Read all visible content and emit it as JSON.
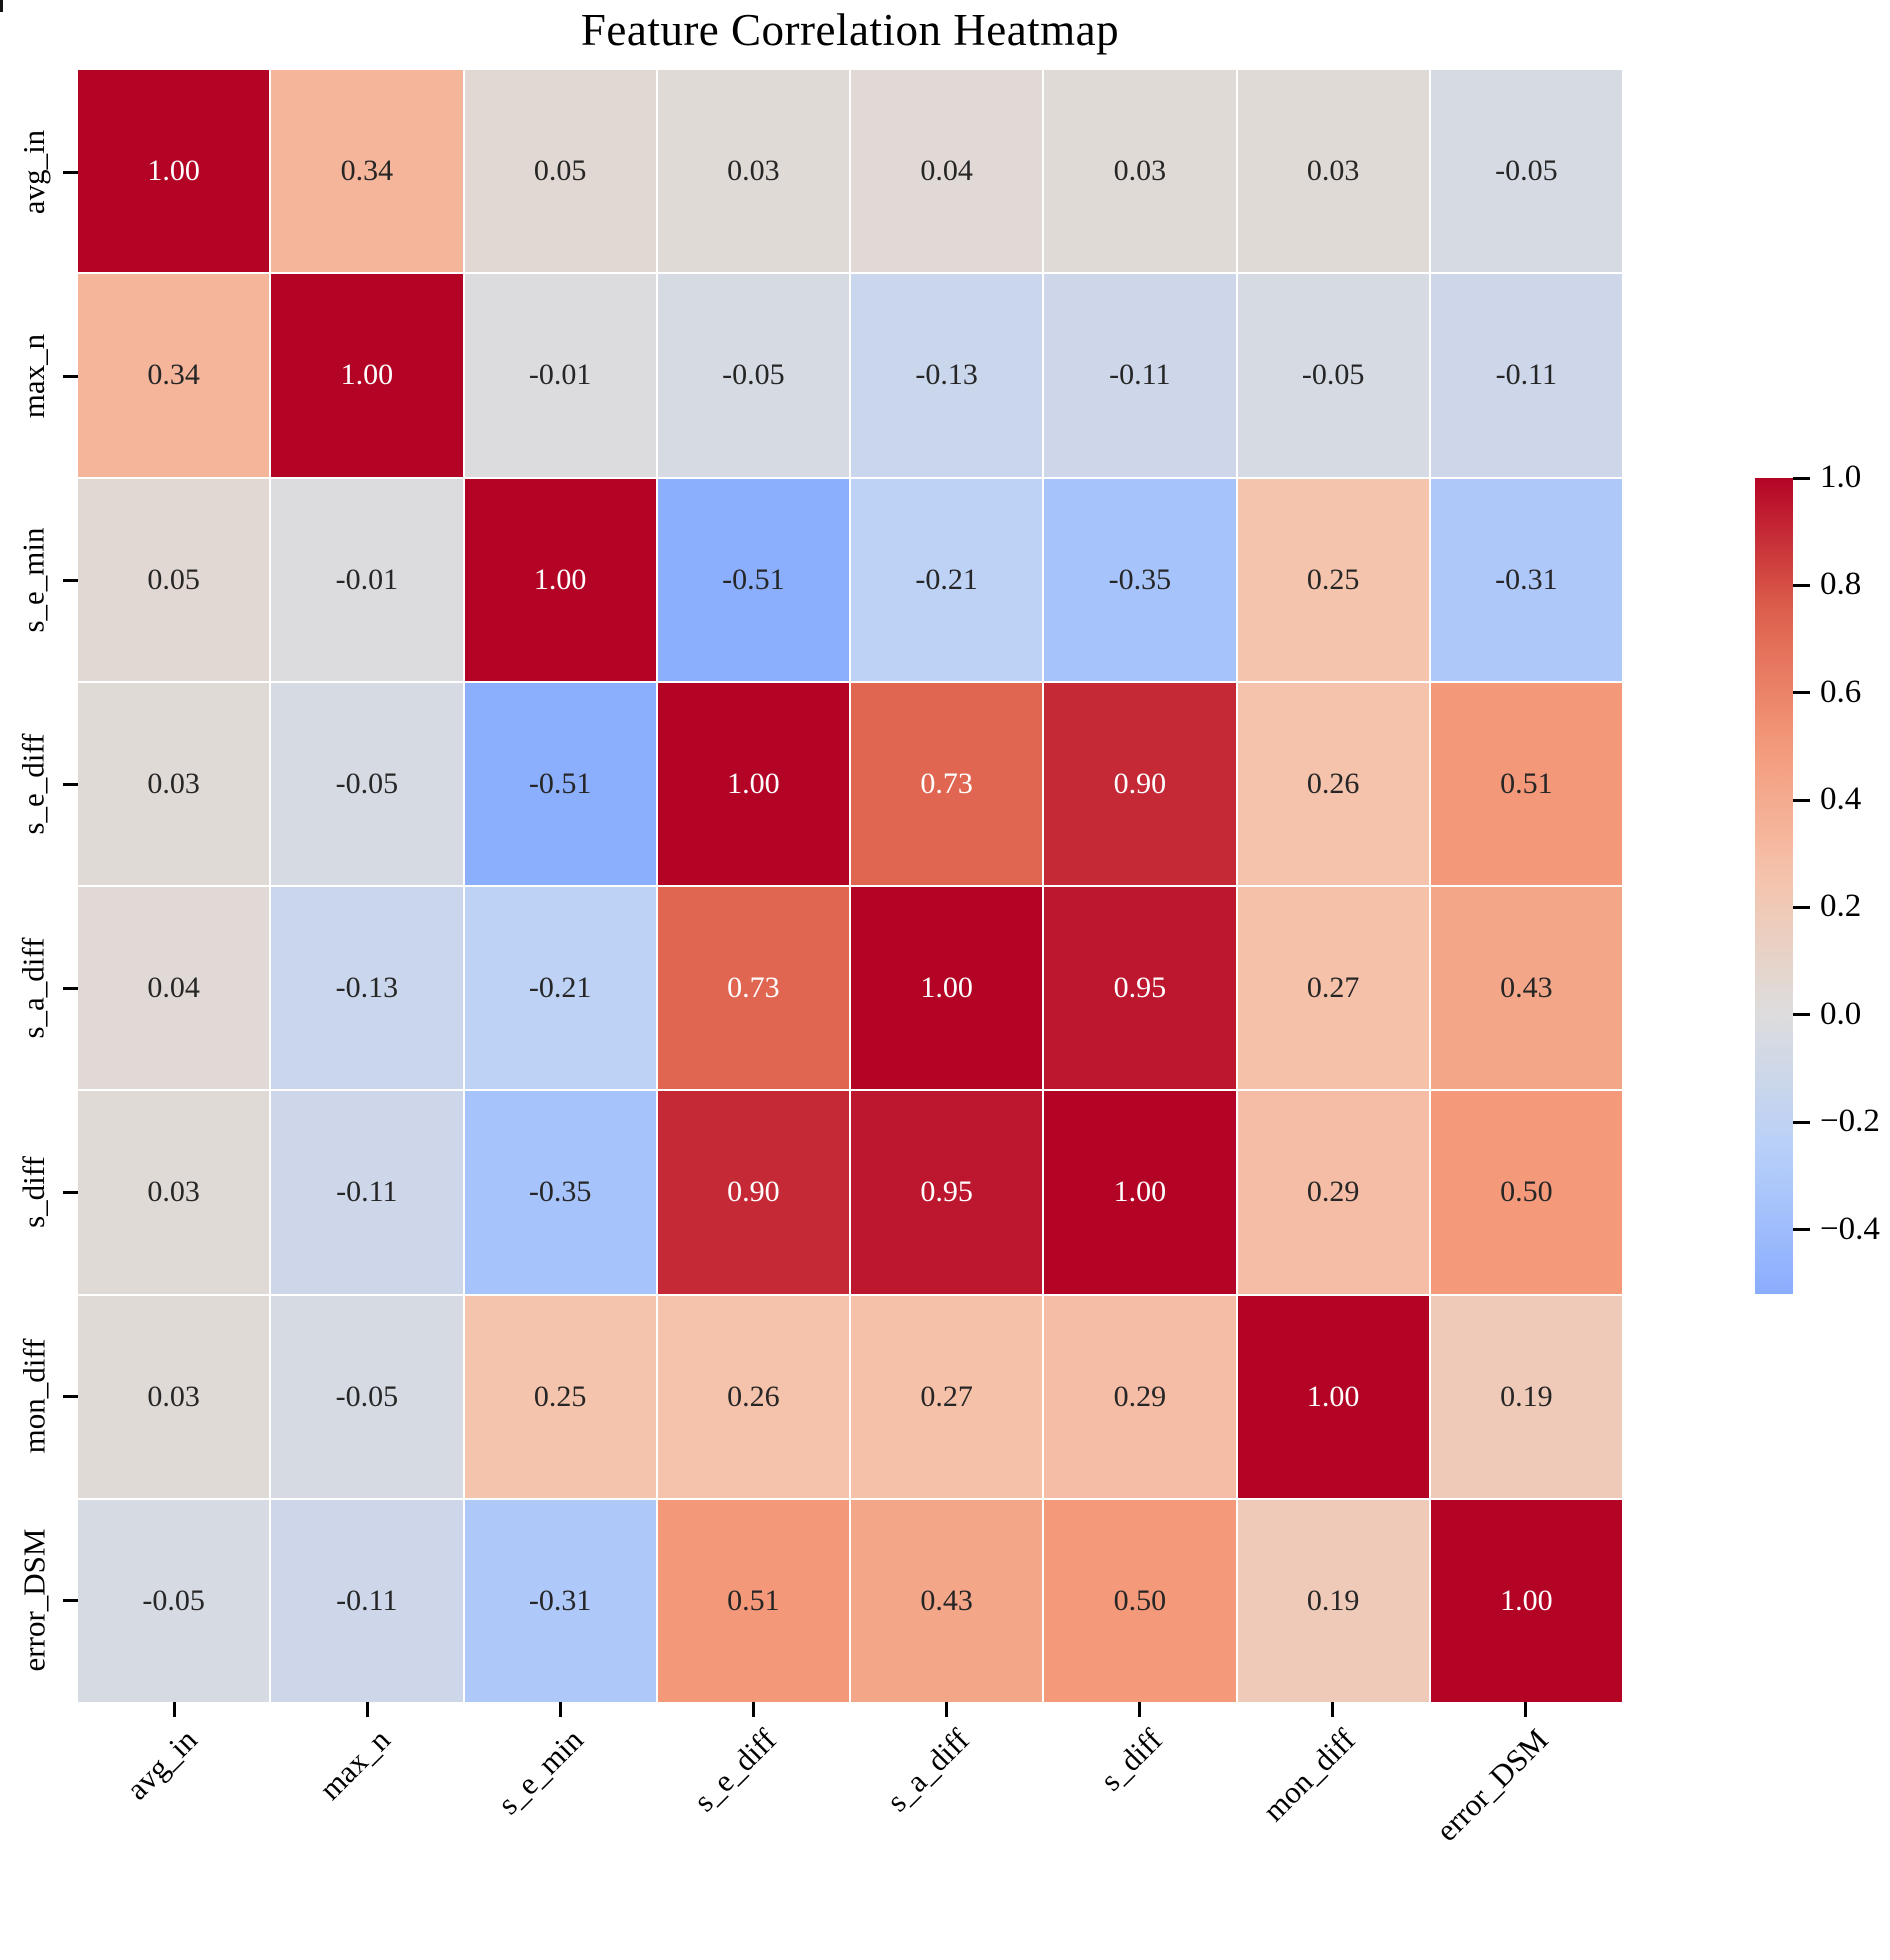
{
  "figure": {
    "title": "Feature Correlation Heatmap",
    "background": "#ffffff"
  },
  "chart_data": {
    "type": "heatmap",
    "title": "Feature Correlation Heatmap",
    "x_tick_labels": [
      "avg_in",
      "max_n",
      "s_e_min",
      "s_e_diff",
      "s_a_diff",
      "s_diff",
      "mon_diff",
      "error_DSM"
    ],
    "y_tick_labels": [
      "avg_in",
      "max_n",
      "s_e_min",
      "s_e_diff",
      "s_a_diff",
      "s_diff",
      "mon_diff",
      "error_DSM"
    ],
    "matrix": [
      [
        1.0,
        0.34,
        0.05,
        0.03,
        0.04,
        0.03,
        0.03,
        -0.05
      ],
      [
        0.34,
        1.0,
        -0.01,
        -0.05,
        -0.13,
        -0.11,
        -0.05,
        -0.11
      ],
      [
        0.05,
        -0.01,
        1.0,
        -0.51,
        -0.21,
        -0.35,
        0.25,
        -0.31
      ],
      [
        0.03,
        -0.05,
        -0.51,
        1.0,
        0.73,
        0.9,
        0.26,
        0.51
      ],
      [
        0.04,
        -0.13,
        -0.21,
        0.73,
        1.0,
        0.95,
        0.27,
        0.43
      ],
      [
        0.03,
        -0.11,
        -0.35,
        0.9,
        0.95,
        1.0,
        0.29,
        0.5
      ],
      [
        0.03,
        -0.05,
        0.25,
        0.26,
        0.27,
        0.29,
        1.0,
        0.19
      ],
      [
        -0.05,
        -0.11,
        -0.31,
        0.51,
        0.43,
        0.5,
        0.19,
        1.0
      ]
    ],
    "cell_value_decimals": 2,
    "annotations_on": true,
    "grid_line_color": "#ffffff",
    "annotation_text_colors": {
      "light": "#ffffff",
      "dark": "#262626"
    },
    "color_scale": {
      "type": "diverging-coolwarm-centered-0",
      "vmax": 1.0,
      "vmin_display": -0.52,
      "anchors": [
        "#3B4CC0",
        "#6282EA",
        "#8DB0FE",
        "#B8D0F9",
        "#DDDDDD",
        "#F5C4AD",
        "#F49A7B",
        "#DE614D",
        "#B40426"
      ]
    },
    "colorbar": {
      "position": "right",
      "tick_labels": [
        "1.0",
        "0.8",
        "0.6",
        "0.4",
        "0.2",
        "0.0",
        "−0.2",
        "−0.4"
      ],
      "tick_values": [
        1.0,
        0.8,
        0.6,
        0.4,
        0.2,
        0.0,
        -0.2,
        -0.4
      ]
    }
  }
}
